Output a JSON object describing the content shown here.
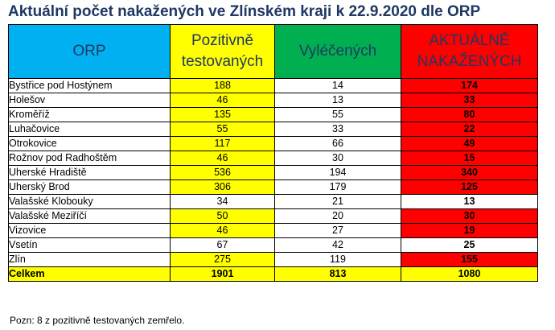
{
  "title": "Aktuální počet nakažených ve Zlínském kraji k 22.9.2020 dle ORP",
  "headers": {
    "orp": "ORP",
    "pozitivne_l1": "Pozitivně",
    "pozitivne_l2": "testovaných",
    "vylecenych": "Vyléčených",
    "aktualne_l1": "AKTUÁLNĚ",
    "aktualne_l2": "NAKAŽENÝCH"
  },
  "colors": {
    "header_orp": "#00b0f0",
    "header_pozitivne": "#ffff00",
    "header_vylecenych": "#00b050",
    "header_aktualne": "#ff0000",
    "title": "#1f3864"
  },
  "rows": [
    {
      "orp": "Bystřice pod Hostýnem",
      "pozitivne": "188",
      "vylecenych": "14",
      "aktualne": "174",
      "pos_highlight": true,
      "akt_highlight": true
    },
    {
      "orp": "Holešov",
      "pozitivne": "46",
      "vylecenych": "13",
      "aktualne": "33",
      "pos_highlight": true,
      "akt_highlight": true
    },
    {
      "orp": "Kroměříž",
      "pozitivne": "135",
      "vylecenych": "55",
      "aktualne": "80",
      "pos_highlight": true,
      "akt_highlight": true
    },
    {
      "orp": "Luhačovice",
      "pozitivne": "55",
      "vylecenych": "33",
      "aktualne": "22",
      "pos_highlight": true,
      "akt_highlight": true
    },
    {
      "orp": "Otrokovice",
      "pozitivne": "117",
      "vylecenych": "66",
      "aktualne": "49",
      "pos_highlight": true,
      "akt_highlight": true
    },
    {
      "orp": "Rožnov pod Radhoštěm",
      "pozitivne": "46",
      "vylecenych": "30",
      "aktualne": "15",
      "pos_highlight": true,
      "akt_highlight": true
    },
    {
      "orp": "Uherské Hradiště",
      "pozitivne": "536",
      "vylecenych": "194",
      "aktualne": "340",
      "pos_highlight": true,
      "akt_highlight": true
    },
    {
      "orp": "Uherský Brod",
      "pozitivne": "306",
      "vylecenych": "179",
      "aktualne": "125",
      "pos_highlight": true,
      "akt_highlight": true
    },
    {
      "orp": "Valašské Klobouky",
      "pozitivne": "34",
      "vylecenych": "21",
      "aktualne": "13",
      "pos_highlight": false,
      "akt_highlight": false
    },
    {
      "orp": "Valašské Meziříčí",
      "pozitivne": "50",
      "vylecenych": "20",
      "aktualne": "30",
      "pos_highlight": true,
      "akt_highlight": true
    },
    {
      "orp": "Vizovice",
      "pozitivne": "46",
      "vylecenych": "27",
      "aktualne": "19",
      "pos_highlight": true,
      "akt_highlight": true
    },
    {
      "orp": "Vsetín",
      "pozitivne": "67",
      "vylecenych": "42",
      "aktualne": "25",
      "pos_highlight": false,
      "akt_highlight": false
    },
    {
      "orp": "Zlín",
      "pozitivne": "275",
      "vylecenych": "119",
      "aktualne": "155",
      "pos_highlight": true,
      "akt_highlight": true
    }
  ],
  "total": {
    "orp": "Celkem",
    "pozitivne": "1901",
    "vylecenych": "813",
    "aktualne": "1080"
  },
  "note": "Pozn: 8 z pozitivně testovaných zemřelo."
}
